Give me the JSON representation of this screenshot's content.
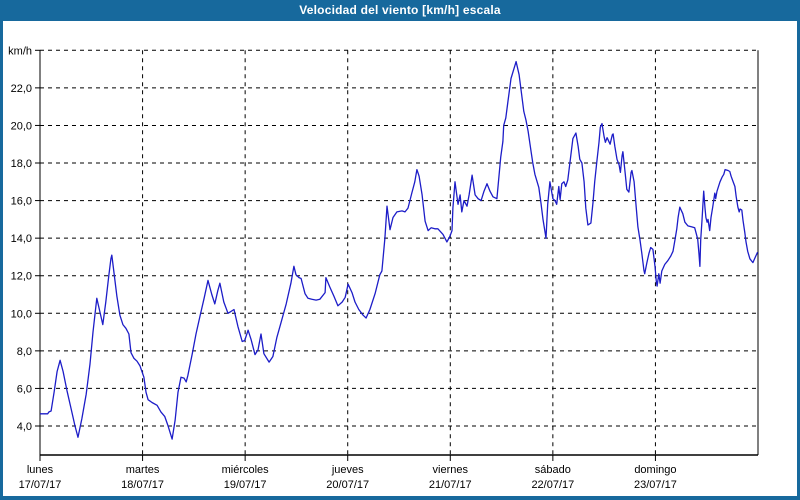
{
  "window": {
    "title": "Velocidad del viento [km/h] escala"
  },
  "colors": {
    "titlebar": "#17699d",
    "window_border": "#17699d",
    "series_line": "#1d1dc8",
    "grid": "#000000",
    "background": "#ffffff"
  },
  "chart_data": {
    "type": "line",
    "title": "Velocidad del viento [km/h] escala",
    "ylabel": "km/h",
    "unit": "km/h",
    "grid": "dashed",
    "legend_position": "none",
    "ylim": [
      2.4,
      24.0
    ],
    "y_ticks": [
      4,
      6,
      8,
      10,
      12,
      14,
      16,
      18,
      20,
      22,
      24
    ],
    "y_tick_labels": [
      "4,0",
      "6,0",
      "8,0",
      "10,0",
      "12,0",
      "14,0",
      "16,0",
      "18,0",
      "20,0",
      "22,0",
      "km/h"
    ],
    "x_axis_description": "hours from Monday 00:00, one vertical gridline per day",
    "x_range_hours": [
      0,
      168
    ],
    "day_labels": [
      {
        "name": "lunes",
        "date": "17/07/17"
      },
      {
        "name": "martes",
        "date": "18/07/17"
      },
      {
        "name": "miércoles",
        "date": "19/07/17"
      },
      {
        "name": "jueves",
        "date": "20/07/17"
      },
      {
        "name": "viernes",
        "date": "21/07/17"
      },
      {
        "name": "sábado",
        "date": "22/07/17"
      },
      {
        "name": "domingo",
        "date": "23/07/17"
      }
    ],
    "points": [
      [
        0,
        4.65
      ],
      [
        1.8,
        4.65
      ],
      [
        2.1,
        4.75
      ],
      [
        2.6,
        4.8
      ],
      [
        3.3,
        5.8
      ],
      [
        4,
        6.9
      ],
      [
        4.7,
        7.5
      ],
      [
        5.4,
        6.9
      ],
      [
        6.3,
        5.9
      ],
      [
        7.3,
        4.9
      ],
      [
        8.2,
        4.0
      ],
      [
        8.9,
        3.4
      ],
      [
        9.8,
        4.4
      ],
      [
        10.8,
        5.7
      ],
      [
        11.7,
        7.3
      ],
      [
        12.4,
        9.0
      ],
      [
        12.9,
        10.0
      ],
      [
        13.3,
        10.8
      ],
      [
        14,
        10.1
      ],
      [
        14.7,
        9.4
      ],
      [
        15.4,
        10.6
      ],
      [
        16.1,
        12.0
      ],
      [
        16.6,
        12.9
      ],
      [
        16.8,
        13.1
      ],
      [
        17.3,
        12.2
      ],
      [
        18,
        10.9
      ],
      [
        18.7,
        9.9
      ],
      [
        19.4,
        9.4
      ],
      [
        20.1,
        9.2
      ],
      [
        20.8,
        8.9
      ],
      [
        21.3,
        7.9
      ],
      [
        22,
        7.6
      ],
      [
        22.7,
        7.45
      ],
      [
        23.4,
        7.2
      ],
      [
        24.3,
        6.6
      ],
      [
        24.8,
        5.8
      ],
      [
        25.3,
        5.4
      ],
      [
        26.2,
        5.25
      ],
      [
        27.4,
        5.1
      ],
      [
        28.3,
        4.75
      ],
      [
        29.2,
        4.5
      ],
      [
        29.9,
        4.05
      ],
      [
        30.9,
        3.3
      ],
      [
        31.6,
        4.3
      ],
      [
        32.3,
        5.8
      ],
      [
        33,
        6.6
      ],
      [
        33.7,
        6.55
      ],
      [
        34.2,
        6.35
      ],
      [
        34.6,
        6.7
      ],
      [
        35.6,
        7.8
      ],
      [
        36.5,
        8.9
      ],
      [
        37.4,
        9.8
      ],
      [
        38.4,
        10.8
      ],
      [
        39.3,
        11.75
      ],
      [
        40.2,
        11.0
      ],
      [
        40.9,
        10.5
      ],
      [
        41.6,
        11.2
      ],
      [
        42.1,
        11.6
      ],
      [
        43,
        10.6
      ],
      [
        44,
        10.0
      ],
      [
        44.7,
        10.1
      ],
      [
        45.4,
        10.2
      ],
      [
        46.3,
        9.3
      ],
      [
        47.3,
        8.5
      ],
      [
        47.9,
        8.55
      ],
      [
        48.7,
        9.1
      ],
      [
        49.4,
        8.6
      ],
      [
        50.3,
        7.8
      ],
      [
        51,
        8.05
      ],
      [
        51.7,
        8.9
      ],
      [
        52.4,
        7.85
      ],
      [
        53.6,
        7.4
      ],
      [
        54.5,
        7.7
      ],
      [
        55.4,
        8.7
      ],
      [
        56.4,
        9.5
      ],
      [
        57.6,
        10.5
      ],
      [
        58.7,
        11.6
      ],
      [
        59.4,
        12.5
      ],
      [
        59.9,
        12.05
      ],
      [
        60.6,
        11.9
      ],
      [
        61.1,
        11.85
      ],
      [
        62,
        11.05
      ],
      [
        62.7,
        10.8
      ],
      [
        63.6,
        10.75
      ],
      [
        64.6,
        10.7
      ],
      [
        65.5,
        10.75
      ],
      [
        66.7,
        11.1
      ],
      [
        66.9,
        11.9
      ],
      [
        67.8,
        11.4
      ],
      [
        68.8,
        10.9
      ],
      [
        69.7,
        10.4
      ],
      [
        70.7,
        10.6
      ],
      [
        71.4,
        10.85
      ],
      [
        72.1,
        11.55
      ],
      [
        73,
        11.1
      ],
      [
        73.7,
        10.6
      ],
      [
        74.6,
        10.2
      ],
      [
        75.6,
        9.9
      ],
      [
        76.3,
        9.75
      ],
      [
        77.2,
        10.2
      ],
      [
        78.4,
        11.05
      ],
      [
        79.5,
        12.05
      ],
      [
        80,
        12.25
      ],
      [
        80.7,
        14.0
      ],
      [
        81.2,
        15.7
      ],
      [
        81.9,
        14.45
      ],
      [
        82.6,
        15.1
      ],
      [
        83.5,
        15.4
      ],
      [
        84.7,
        15.45
      ],
      [
        85.4,
        15.4
      ],
      [
        86.1,
        15.6
      ],
      [
        87,
        16.4
      ],
      [
        87.7,
        17.0
      ],
      [
        88.2,
        17.65
      ],
      [
        88.7,
        17.3
      ],
      [
        89.4,
        16.3
      ],
      [
        90.1,
        14.9
      ],
      [
        90.8,
        14.4
      ],
      [
        91.5,
        14.55
      ],
      [
        92.4,
        14.5
      ],
      [
        93.1,
        14.5
      ],
      [
        94.3,
        14.2
      ],
      [
        95.2,
        13.8
      ],
      [
        95.9,
        14.1
      ],
      [
        96.4,
        14.4
      ],
      [
        96.6,
        15.6
      ],
      [
        97.1,
        17.0
      ],
      [
        97.8,
        15.8
      ],
      [
        98.3,
        16.3
      ],
      [
        98.7,
        15.4
      ],
      [
        99.2,
        16.0
      ],
      [
        99.9,
        15.7
      ],
      [
        100.4,
        16.3
      ],
      [
        101.1,
        17.35
      ],
      [
        101.8,
        16.3
      ],
      [
        102.5,
        16.1
      ],
      [
        103.2,
        16.0
      ],
      [
        103.9,
        16.5
      ],
      [
        104.6,
        16.9
      ],
      [
        105.3,
        16.5
      ],
      [
        106,
        16.2
      ],
      [
        106.9,
        16.1
      ],
      [
        107.8,
        18.3
      ],
      [
        108.3,
        19.15
      ],
      [
        108.5,
        20.0
      ],
      [
        109,
        20.4
      ],
      [
        109.5,
        21.3
      ],
      [
        110.2,
        22.5
      ],
      [
        111.4,
        23.4
      ],
      [
        112.1,
        22.7
      ],
      [
        112.5,
        22.0
      ],
      [
        113.2,
        20.75
      ],
      [
        113.7,
        20.3
      ],
      [
        114.2,
        19.7
      ],
      [
        114.9,
        18.6
      ],
      [
        115.3,
        18.0
      ],
      [
        115.8,
        17.4
      ],
      [
        116.7,
        16.7
      ],
      [
        117.2,
        15.9
      ],
      [
        117.7,
        15.0
      ],
      [
        118.4,
        14.0
      ],
      [
        118.8,
        15.8
      ],
      [
        119.3,
        17.0
      ],
      [
        120,
        16.1
      ],
      [
        120.5,
        16.0
      ],
      [
        120.9,
        15.8
      ],
      [
        121.4,
        16.75
      ],
      [
        121.7,
        16.05
      ],
      [
        122.1,
        16.9
      ],
      [
        122.6,
        17.0
      ],
      [
        123,
        16.75
      ],
      [
        123.5,
        17.1
      ],
      [
        124,
        18.05
      ],
      [
        124.7,
        19.3
      ],
      [
        125.4,
        19.6
      ],
      [
        125.9,
        18.9
      ],
      [
        126.3,
        18.2
      ],
      [
        126.8,
        18.0
      ],
      [
        127.3,
        17.0
      ],
      [
        127.7,
        15.6
      ],
      [
        128.2,
        14.7
      ],
      [
        128.9,
        14.8
      ],
      [
        129.4,
        15.9
      ],
      [
        129.8,
        17.0
      ],
      [
        130.3,
        18.1
      ],
      [
        130.8,
        19.1
      ],
      [
        131.1,
        19.9
      ],
      [
        131.5,
        20.1
      ],
      [
        132,
        19.4
      ],
      [
        132.3,
        19.1
      ],
      [
        132.7,
        19.35
      ],
      [
        133.4,
        19.0
      ],
      [
        133.9,
        19.5
      ],
      [
        134.1,
        19.55
      ],
      [
        134.5,
        18.9
      ],
      [
        135,
        18.2
      ],
      [
        135.5,
        17.9
      ],
      [
        135.8,
        17.5
      ],
      [
        136.2,
        18.4
      ],
      [
        136.4,
        18.6
      ],
      [
        136.9,
        17.5
      ],
      [
        137.3,
        16.6
      ],
      [
        137.8,
        16.45
      ],
      [
        138.3,
        17.5
      ],
      [
        138.5,
        17.6
      ],
      [
        139,
        17.0
      ],
      [
        139.4,
        15.9
      ],
      [
        139.9,
        14.6
      ],
      [
        140.4,
        13.9
      ],
      [
        140.8,
        13.2
      ],
      [
        141.3,
        12.3
      ],
      [
        141.5,
        12.1
      ],
      [
        142,
        12.7
      ],
      [
        142.5,
        13.2
      ],
      [
        142.9,
        13.5
      ],
      [
        143.4,
        13.4
      ],
      [
        143.9,
        12.5
      ],
      [
        144.2,
        11.7
      ],
      [
        144.4,
        11.45
      ],
      [
        144.8,
        12.1
      ],
      [
        145.1,
        11.6
      ],
      [
        145.5,
        12.25
      ],
      [
        146.2,
        12.6
      ],
      [
        146.9,
        12.8
      ],
      [
        147.6,
        13.05
      ],
      [
        148.1,
        13.3
      ],
      [
        148.6,
        13.95
      ],
      [
        149,
        14.5
      ],
      [
        149.3,
        15.1
      ],
      [
        149.7,
        15.65
      ],
      [
        150.4,
        15.3
      ],
      [
        150.9,
        14.85
      ],
      [
        151.6,
        14.65
      ],
      [
        152.5,
        14.6
      ],
      [
        153.2,
        14.55
      ],
      [
        153.9,
        13.95
      ],
      [
        154.2,
        13.15
      ],
      [
        154.4,
        12.5
      ],
      [
        154.6,
        13.9
      ],
      [
        154.9,
        14.95
      ],
      [
        155.3,
        16.5
      ],
      [
        155.6,
        15.6
      ],
      [
        155.8,
        15.1
      ],
      [
        156.1,
        14.85
      ],
      [
        156.3,
        15.0
      ],
      [
        156.7,
        14.4
      ],
      [
        157,
        15.1
      ],
      [
        157.4,
        15.65
      ],
      [
        157.9,
        16.4
      ],
      [
        158.1,
        16.1
      ],
      [
        158.4,
        16.5
      ],
      [
        159.1,
        17.0
      ],
      [
        159.6,
        17.25
      ],
      [
        160,
        17.4
      ],
      [
        160.3,
        17.65
      ],
      [
        161,
        17.6
      ],
      [
        161.4,
        17.55
      ],
      [
        161.7,
        17.3
      ],
      [
        162.1,
        17.05
      ],
      [
        162.6,
        16.75
      ],
      [
        162.9,
        16.2
      ],
      [
        163.3,
        15.65
      ],
      [
        163.6,
        15.4
      ],
      [
        163.8,
        15.55
      ],
      [
        164.2,
        15.5
      ],
      [
        164.5,
        14.95
      ],
      [
        164.9,
        14.3
      ],
      [
        165.2,
        13.8
      ],
      [
        165.6,
        13.3
      ],
      [
        166.1,
        12.9
      ],
      [
        166.8,
        12.7
      ],
      [
        167.4,
        13.0
      ],
      [
        167.9,
        13.25
      ]
    ]
  }
}
